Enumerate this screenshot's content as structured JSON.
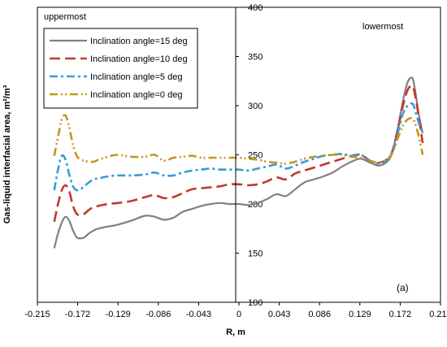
{
  "chart_data": {
    "type": "line",
    "title": "",
    "xlabel": "R, m",
    "ylabel": "Gas-liquid interfacial area, m²/m³",
    "xlim": [
      -0.215,
      0.215
    ],
    "ylim": [
      100,
      400
    ],
    "x_ticks": [
      "-0.215",
      "-0.172",
      "-0.129",
      "-0.086",
      "-0.043",
      "0",
      "0.043",
      "0.086",
      "0.129",
      "0.172",
      "0.215"
    ],
    "y_ticks": [
      "100",
      "150",
      "200",
      "250",
      "300",
      "350",
      "400"
    ],
    "grid": false,
    "legend_position": "top-left",
    "annotations": {
      "left": "uppermost",
      "right": "lowermost",
      "panel": "(a)"
    },
    "series": [
      {
        "name": "Inclination angle=15 deg",
        "color": "#808080",
        "dash": "solid",
        "x": [
          -0.197,
          -0.193,
          -0.189,
          -0.185,
          -0.181,
          -0.177,
          -0.173,
          -0.169,
          -0.165,
          -0.16,
          -0.155,
          -0.15,
          -0.14,
          -0.129,
          -0.115,
          -0.1,
          -0.09,
          -0.08,
          -0.07,
          -0.06,
          -0.05,
          -0.04,
          -0.03,
          -0.02,
          -0.01,
          0.0,
          0.01,
          0.02,
          0.03,
          0.04,
          0.05,
          0.06,
          0.07,
          0.08,
          0.09,
          0.1,
          0.11,
          0.12,
          0.13,
          0.14,
          0.15,
          0.16,
          0.165,
          0.17,
          0.175,
          0.18,
          0.185,
          0.188,
          0.192,
          0.196
        ],
        "y": [
          155,
          170,
          181,
          187,
          183,
          173,
          166,
          165,
          166,
          170,
          173,
          175,
          177,
          179,
          183,
          188,
          187,
          184,
          186,
          192,
          195,
          198,
          200,
          201,
          200,
          200,
          199,
          201,
          205,
          210,
          208,
          215,
          222,
          225,
          228,
          232,
          238,
          243,
          246,
          242,
          239,
          245,
          258,
          280,
          305,
          324,
          328,
          315,
          290,
          272
        ]
      },
      {
        "name": "Inclination angle=10 deg",
        "color": "#c0392b",
        "dash": "long",
        "x": [
          -0.197,
          -0.193,
          -0.189,
          -0.185,
          -0.181,
          -0.177,
          -0.173,
          -0.169,
          -0.165,
          -0.16,
          -0.155,
          -0.15,
          -0.14,
          -0.129,
          -0.115,
          -0.1,
          -0.09,
          -0.08,
          -0.07,
          -0.06,
          -0.05,
          -0.04,
          -0.03,
          -0.02,
          -0.01,
          0.0,
          0.01,
          0.02,
          0.03,
          0.04,
          0.05,
          0.06,
          0.07,
          0.08,
          0.09,
          0.1,
          0.11,
          0.12,
          0.13,
          0.14,
          0.15,
          0.16,
          0.165,
          0.17,
          0.175,
          0.18,
          0.185,
          0.188,
          0.192,
          0.196
        ],
        "y": [
          182,
          200,
          214,
          219,
          213,
          198,
          190,
          189,
          190,
          194,
          197,
          198,
          200,
          201,
          203,
          207,
          209,
          206,
          207,
          211,
          215,
          216,
          217,
          218,
          220,
          220,
          219,
          220,
          223,
          227,
          225,
          231,
          234,
          237,
          240,
          243,
          246,
          249,
          250,
          244,
          242,
          247,
          258,
          278,
          300,
          316,
          320,
          310,
          288,
          262
        ]
      },
      {
        "name": "Inclination angle=5 deg",
        "color": "#3a9ad9",
        "dash": "dashdot",
        "x": [
          -0.197,
          -0.193,
          -0.189,
          -0.185,
          -0.181,
          -0.177,
          -0.173,
          -0.169,
          -0.165,
          -0.16,
          -0.155,
          -0.15,
          -0.14,
          -0.129,
          -0.115,
          -0.1,
          -0.09,
          -0.08,
          -0.07,
          -0.06,
          -0.05,
          -0.04,
          -0.03,
          -0.02,
          -0.01,
          0.0,
          0.01,
          0.02,
          0.03,
          0.04,
          0.05,
          0.06,
          0.07,
          0.08,
          0.09,
          0.1,
          0.11,
          0.12,
          0.13,
          0.14,
          0.15,
          0.16,
          0.165,
          0.17,
          0.175,
          0.18,
          0.185,
          0.188,
          0.192,
          0.196
        ],
        "y": [
          214,
          235,
          249,
          245,
          230,
          218,
          214,
          215,
          218,
          222,
          225,
          226,
          228,
          229,
          229,
          230,
          232,
          229,
          229,
          232,
          234,
          235,
          236,
          235,
          235,
          235,
          234,
          236,
          238,
          240,
          236,
          239,
          243,
          246,
          249,
          250,
          251,
          249,
          250,
          244,
          241,
          246,
          256,
          274,
          292,
          300,
          302,
          295,
          282,
          272
        ]
      },
      {
        "name": "Inclination angle=0 deg",
        "color": "#c8951e",
        "dash": "dashdotdot",
        "x": [
          -0.197,
          -0.193,
          -0.189,
          -0.185,
          -0.181,
          -0.177,
          -0.173,
          -0.169,
          -0.165,
          -0.16,
          -0.155,
          -0.15,
          -0.14,
          -0.129,
          -0.115,
          -0.1,
          -0.09,
          -0.08,
          -0.07,
          -0.06,
          -0.05,
          -0.04,
          -0.03,
          -0.02,
          -0.01,
          0.0,
          0.01,
          0.02,
          0.03,
          0.04,
          0.05,
          0.06,
          0.07,
          0.08,
          0.09,
          0.1,
          0.11,
          0.12,
          0.13,
          0.14,
          0.15,
          0.16,
          0.165,
          0.17,
          0.175,
          0.18,
          0.185,
          0.188,
          0.192,
          0.196
        ],
        "y": [
          249,
          268,
          286,
          290,
          278,
          260,
          249,
          245,
          244,
          243,
          243,
          245,
          248,
          250,
          248,
          248,
          250,
          244,
          247,
          248,
          249,
          247,
          247,
          247,
          247,
          247,
          246,
          245,
          243,
          242,
          241,
          243,
          246,
          248,
          249,
          250,
          250,
          248,
          247,
          244,
          242,
          247,
          255,
          268,
          280,
          286,
          287,
          282,
          268,
          250
        ]
      }
    ]
  }
}
